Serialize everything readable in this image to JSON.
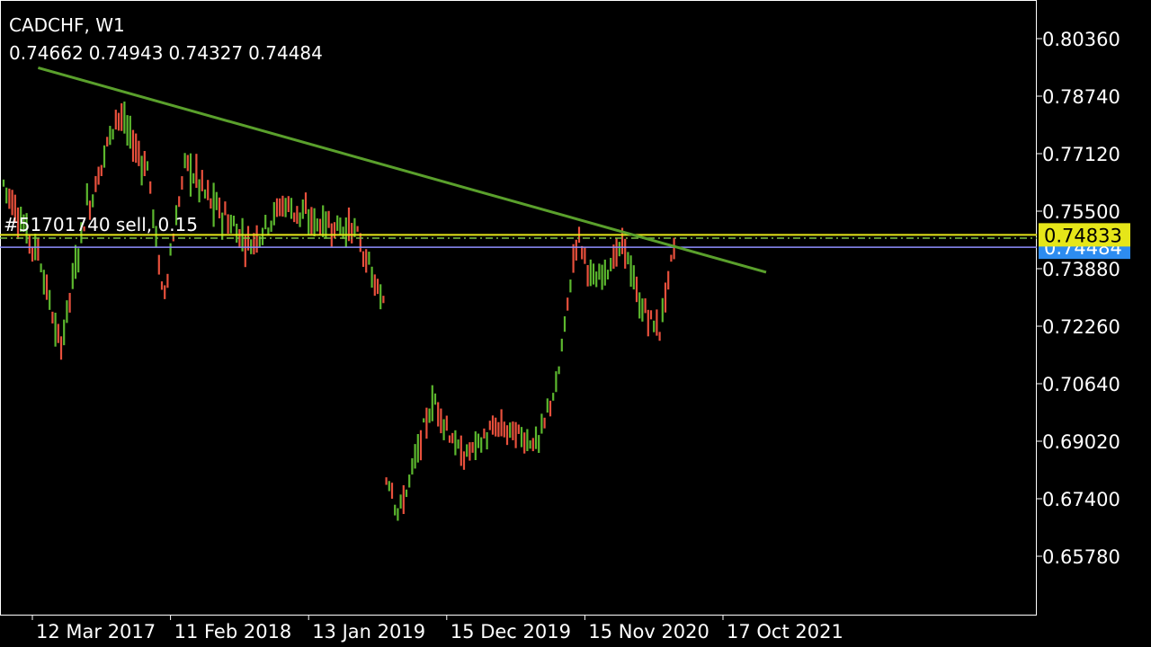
{
  "header": {
    "symbol_timeframe": "CADCHF, W1",
    "ohlc": [
      "0.74662",
      "0.74943",
      "0.74327",
      "0.74484"
    ]
  },
  "order_line": {
    "label": "#51701740 sell, 0.15",
    "price": 0.74833,
    "color": "#e6e619"
  },
  "colors": {
    "background": "#000000",
    "bull": "#5cb82e",
    "bear": "#e8503c",
    "trendline": "#5aa02c",
    "bid_line": "#8f8fff",
    "order_line": "#e6e619",
    "bid_tag": "#2d8cf0",
    "axis": "#ffffff",
    "grid": "#1a1a1a"
  },
  "chart_data": {
    "type": "bar",
    "symbol": "CADCHF",
    "timeframe": "W1",
    "y_tick_labels": [
      "0.80360",
      "0.78740",
      "0.77120",
      "0.75500",
      "0.73880",
      "0.72260",
      "0.70640",
      "0.69020",
      "0.67400",
      "0.65780"
    ],
    "x_tick_labels": [
      "12 Mar 2017",
      "11 Feb 2018",
      "13 Jan 2019",
      "15 Dec 2019",
      "15 Nov 2020",
      "17 Oct 2021"
    ],
    "ylim": [
      0.6474,
      0.8124
    ],
    "price_tags": [
      {
        "label": "0.74833",
        "price": 0.74833,
        "kind": "order"
      },
      {
        "label": "0.74484",
        "price": 0.74484,
        "kind": "bid"
      }
    ],
    "trendline": {
      "start": {
        "date": "2017-03-26",
        "price": 0.7954
      },
      "end": {
        "date": "2022-01-30",
        "price": 0.7378
      }
    },
    "green_dashed_level": 0.7474,
    "bid_level": 0.74484,
    "segments": [
      {
        "bars": 12,
        "from": 0.763,
        "to": 0.744,
        "amp": 0.007
      },
      {
        "bars": 8,
        "from": 0.744,
        "to": 0.718,
        "amp": 0.006
      },
      {
        "bars": 10,
        "from": 0.718,
        "to": 0.757,
        "amp": 0.007
      },
      {
        "bars": 10,
        "from": 0.757,
        "to": 0.782,
        "amp": 0.006
      },
      {
        "bars": 10,
        "from": 0.782,
        "to": 0.768,
        "amp": 0.007
      },
      {
        "bars": 6,
        "from": 0.768,
        "to": 0.733,
        "amp": 0.005
      },
      {
        "bars": 8,
        "from": 0.733,
        "to": 0.768,
        "amp": 0.005
      },
      {
        "bars": 10,
        "from": 0.768,
        "to": 0.756,
        "amp": 0.008
      },
      {
        "bars": 12,
        "from": 0.756,
        "to": 0.746,
        "amp": 0.007
      },
      {
        "bars": 12,
        "from": 0.746,
        "to": 0.757,
        "amp": 0.006
      },
      {
        "bars": 10,
        "from": 0.757,
        "to": 0.752,
        "amp": 0.007
      },
      {
        "bars": 14,
        "from": 0.752,
        "to": 0.75,
        "amp": 0.006
      },
      {
        "bars": 10,
        "from": 0.75,
        "to": 0.73,
        "amp": 0.005
      },
      {
        "bars": 2,
        "from": 0.73,
        "to": 0.68,
        "amp": 0.006
      },
      {
        "bars": 4,
        "from": 0.68,
        "to": 0.671,
        "amp": 0.006
      },
      {
        "bars": 12,
        "from": 0.671,
        "to": 0.701,
        "amp": 0.006
      },
      {
        "bars": 10,
        "from": 0.701,
        "to": 0.686,
        "amp": 0.006
      },
      {
        "bars": 12,
        "from": 0.686,
        "to": 0.694,
        "amp": 0.005
      },
      {
        "bars": 14,
        "from": 0.694,
        "to": 0.69,
        "amp": 0.006
      },
      {
        "bars": 6,
        "from": 0.69,
        "to": 0.704,
        "amp": 0.005
      },
      {
        "bars": 8,
        "from": 0.704,
        "to": 0.747,
        "amp": 0.006
      },
      {
        "bars": 6,
        "from": 0.747,
        "to": 0.735,
        "amp": 0.006
      },
      {
        "bars": 10,
        "from": 0.735,
        "to": 0.745,
        "amp": 0.005
      },
      {
        "bars": 6,
        "from": 0.745,
        "to": 0.728,
        "amp": 0.006
      },
      {
        "bars": 6,
        "from": 0.728,
        "to": 0.722,
        "amp": 0.006
      },
      {
        "bars": 6,
        "from": 0.722,
        "to": 0.7448,
        "amp": 0.005
      }
    ]
  }
}
